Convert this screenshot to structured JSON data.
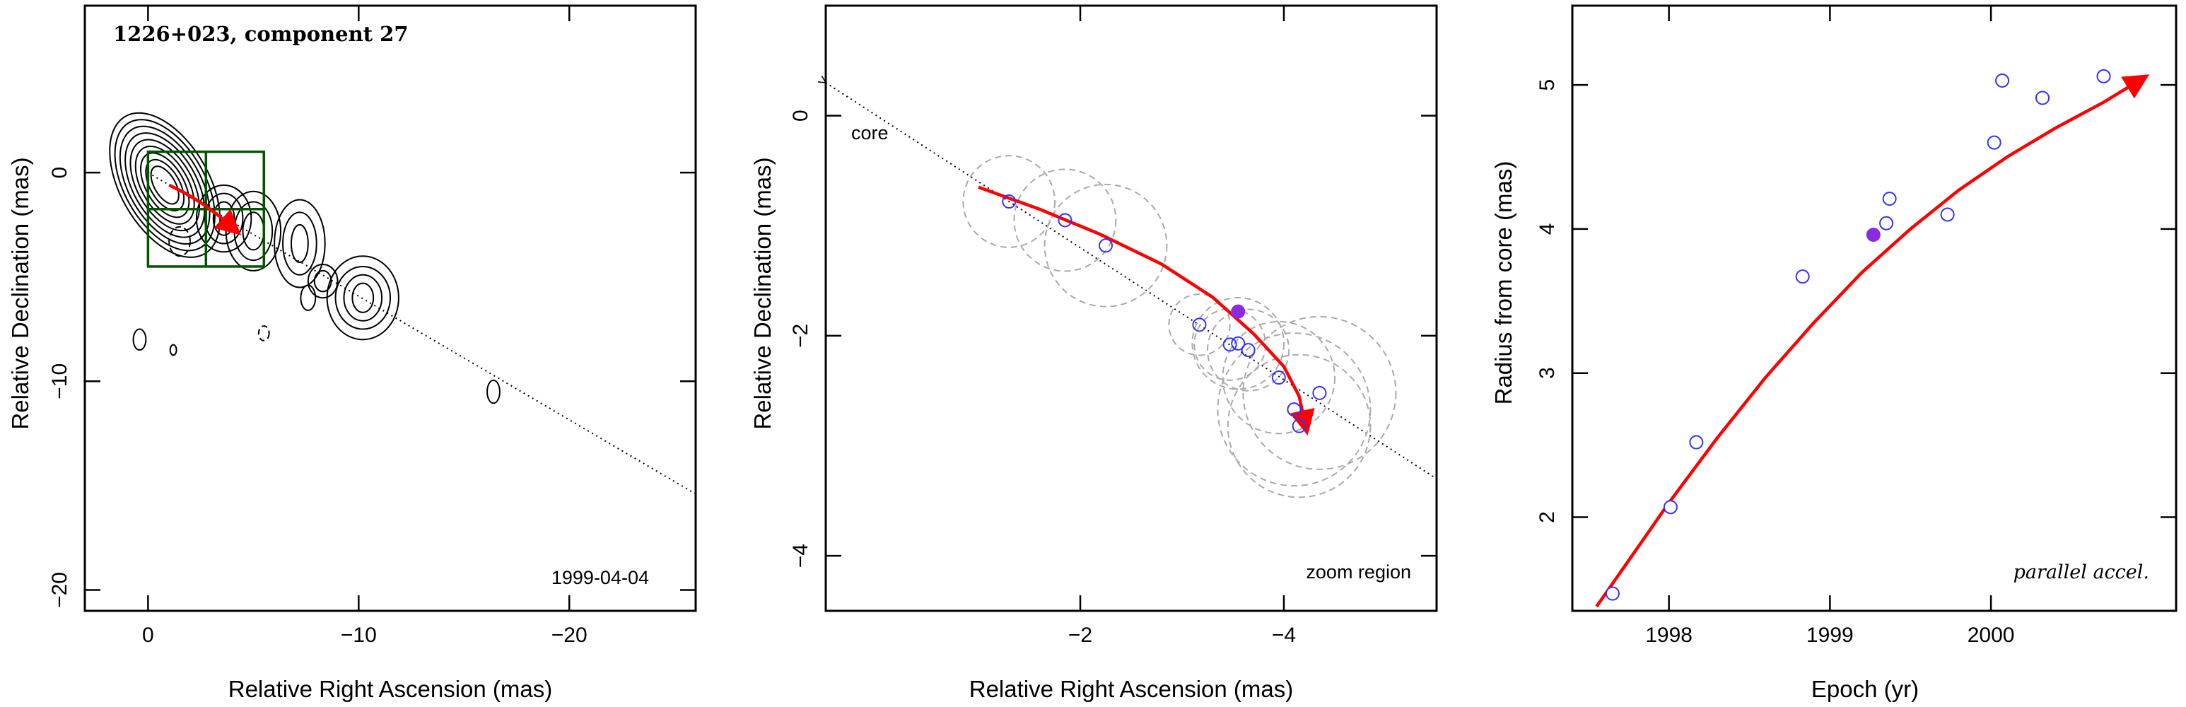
{
  "chart_data": [
    {
      "type": "scatter",
      "panel": "contour map",
      "title": "1226+023, component 27",
      "date_label": "1999-04-04",
      "xlabel": "Relative Right Ascension (mas)",
      "ylabel": "Relative Declination (mas)",
      "xlim": [
        3,
        -26
      ],
      "ylim": [
        -21,
        8
      ],
      "xticks": [
        0,
        -10,
        -20
      ],
      "yticks": [
        0,
        -10,
        -20
      ],
      "xticklabels": [
        "0",
        "−10",
        "−20"
      ],
      "yticklabels": [
        "0",
        "−10",
        "−20"
      ],
      "jet_axis": {
        "x": [
          0,
          -26
        ],
        "y": [
          0,
          -15.4
        ]
      },
      "zoom_box": {
        "x": [
          0,
          -5.5
        ],
        "y": [
          1.0,
          -4.5
        ]
      },
      "trajectory": {
        "x": [
          -1.0,
          -1.8,
          -2.6,
          -3.4,
          -4.2
        ],
        "y": [
          -0.6,
          -1.0,
          -1.5,
          -2.1,
          -2.8
        ]
      },
      "contours": {
        "core": {
          "x": -0.8,
          "y": -0.6,
          "rx": [
            0.5,
            0.7,
            0.9,
            1.1,
            1.3,
            1.5,
            1.7,
            1.9,
            2.1
          ],
          "ry": [
            1.0,
            1.35,
            1.7,
            2.05,
            2.4,
            2.75,
            3.1,
            3.45,
            3.8
          ]
        },
        "blobs": [
          {
            "x": -3.6,
            "y": -2.2,
            "rx": [
              0.5,
              0.9,
              1.3
            ],
            "ry": [
              0.8,
              1.2,
              1.6
            ]
          },
          {
            "x": -5.0,
            "y": -2.8,
            "rx": [
              0.5,
              0.9,
              1.3
            ],
            "ry": [
              0.9,
              1.4,
              1.9
            ]
          },
          {
            "x": -7.2,
            "y": -3.4,
            "rx": [
              0.4,
              0.8,
              1.2
            ],
            "ry": [
              0.9,
              1.5,
              2.1
            ]
          },
          {
            "x": -8.3,
            "y": -5.2,
            "rx": [
              0.4,
              0.7
            ],
            "ry": [
              0.5,
              0.8
            ]
          },
          {
            "x": -10.2,
            "y": -6.0,
            "rx": [
              0.5,
              0.9,
              1.3,
              1.7
            ],
            "ry": [
              0.7,
              1.1,
              1.5,
              2.0
            ]
          },
          {
            "x": -7.6,
            "y": -6.0,
            "rx": [
              0.35
            ],
            "ry": [
              0.6
            ]
          },
          {
            "x": 0.4,
            "y": -8.0,
            "rx": [
              0.3
            ],
            "ry": [
              0.5
            ]
          },
          {
            "x": -1.2,
            "y": -8.5,
            "rx": [
              0.15
            ],
            "ry": [
              0.25
            ]
          },
          {
            "x": -16.4,
            "y": -10.5,
            "rx": [
              0.3
            ],
            "ry": [
              0.55
            ]
          }
        ],
        "dashed": [
          {
            "x": -1.5,
            "y": -3.3,
            "rx": 0.5,
            "ry": 0.7
          },
          {
            "x": -5.5,
            "y": -7.7,
            "rx": 0.25,
            "ry": 0.35
          }
        ]
      }
    },
    {
      "type": "scatter",
      "panel": "zoom",
      "note": "zoom region",
      "core_label": "core",
      "xlabel": "Relative Right Ascension (mas)",
      "ylabel": "Relative Declination (mas)",
      "xlim": [
        0.5,
        -5.5
      ],
      "ylim": [
        -4.5,
        1.0
      ],
      "xticks": [
        -2,
        -4
      ],
      "yticks": [
        0,
        -2,
        -4
      ],
      "xticklabels": [
        "−2",
        "−4"
      ],
      "yticklabels": [
        "0",
        "−2",
        "−4"
      ],
      "jet_axis": {
        "x": [
          0.5,
          -5.5
        ],
        "y": [
          0.3,
          -3.3
        ]
      },
      "points": {
        "x": [
          -1.3,
          -1.85,
          -2.25,
          -3.17,
          -3.47,
          -3.55,
          -3.65,
          -3.95,
          -4.1,
          -4.15,
          -4.35
        ],
        "y": [
          -0.78,
          -0.95,
          -1.18,
          -1.9,
          -2.08,
          -2.07,
          -2.13,
          -2.38,
          -2.67,
          -2.82,
          -2.52
        ]
      },
      "error_circle_radius": [
        0.45,
        0.5,
        0.6,
        0.3,
        0.35,
        0.45,
        0.4,
        0.55,
        0.75,
        0.7,
        0.75
      ],
      "highlight": {
        "x": -3.55,
        "y": -1.78
      },
      "fit": {
        "x": [
          -1.0,
          -1.6,
          -2.2,
          -2.8,
          -3.3,
          -3.7,
          -4.0,
          -4.15,
          -4.22
        ],
        "y": [
          -0.65,
          -0.85,
          -1.08,
          -1.35,
          -1.65,
          -1.98,
          -2.28,
          -2.55,
          -2.85
        ]
      }
    },
    {
      "type": "scatter",
      "panel": "radius vs time",
      "annotation": "parallel accel.",
      "xlabel": "Epoch (yr)",
      "ylabel": "Radius from core (mas)",
      "xlim": [
        1997.4,
        2001.15
      ],
      "ylim": [
        1.35,
        5.55
      ],
      "xticks": [
        1998,
        1999,
        2000
      ],
      "yticks": [
        2,
        3,
        4,
        5
      ],
      "xticklabels": [
        "1998",
        "1999",
        "2000"
      ],
      "yticklabels": [
        "2",
        "3",
        "4",
        "5"
      ],
      "points": {
        "x": [
          1997.65,
          1998.01,
          1998.17,
          1998.83,
          1999.35,
          1999.37,
          1999.73,
          2000.02,
          2000.07,
          2000.32,
          2000.7
        ],
        "y": [
          1.47,
          2.07,
          2.52,
          3.67,
          4.04,
          4.21,
          4.1,
          4.6,
          5.03,
          4.91,
          5.06
        ]
      },
      "highlight": {
        "x": 1999.27,
        "y": 3.96
      },
      "fit": {
        "x": [
          1997.55,
          1997.8,
          1998.0,
          1998.3,
          1998.6,
          1998.9,
          1999.2,
          1999.5,
          1999.8,
          2000.1,
          2000.4,
          2000.7,
          2000.95
        ],
        "y": [
          1.38,
          1.78,
          2.1,
          2.55,
          2.97,
          3.35,
          3.7,
          4.0,
          4.27,
          4.5,
          4.7,
          4.88,
          5.05
        ]
      }
    }
  ]
}
